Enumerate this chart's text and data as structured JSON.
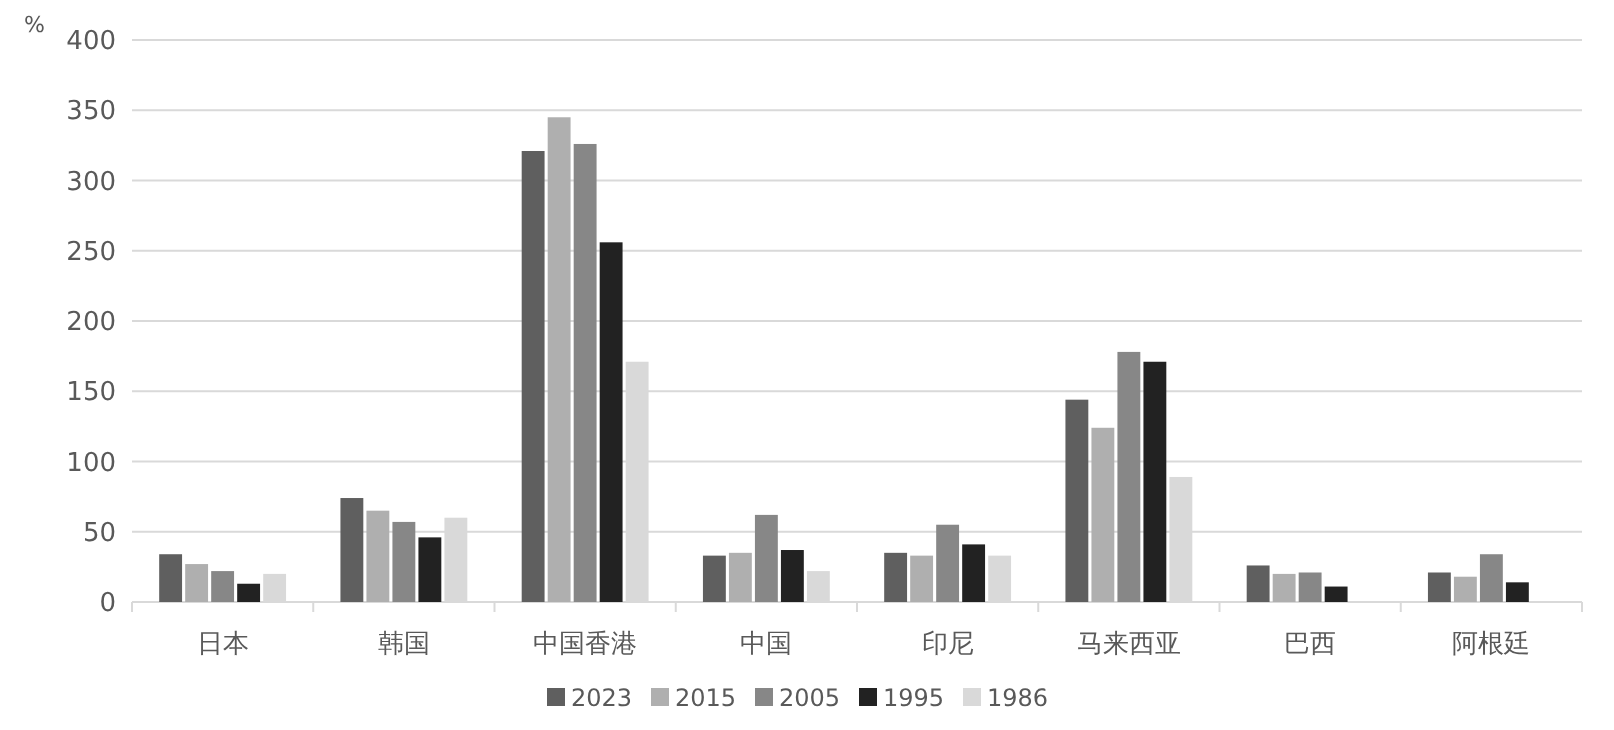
{
  "chart_data": {
    "type": "bar",
    "ylabel": "%",
    "categories": [
      "日本",
      "韩国",
      "中国香港",
      "中国",
      "印尼",
      "马来西亚",
      "巴西",
      "阿根廷"
    ],
    "series": [
      {
        "name": "2023",
        "color": "#5f5f5f",
        "values": [
          34,
          74,
          321,
          33,
          35,
          144,
          26,
          21
        ]
      },
      {
        "name": "2015",
        "color": "#afafaf",
        "values": [
          27,
          65,
          345,
          35,
          33,
          124,
          20,
          18
        ]
      },
      {
        "name": "2005",
        "color": "#878787",
        "values": [
          22,
          57,
          326,
          62,
          55,
          178,
          21,
          34
        ]
      },
      {
        "name": "1995",
        "color": "#222222",
        "values": [
          13,
          46,
          256,
          37,
          41,
          171,
          11,
          14
        ]
      },
      {
        "name": "1986",
        "color": "#d9d9d9",
        "values": [
          20,
          60,
          171,
          22,
          33,
          89,
          null,
          null
        ]
      }
    ],
    "ylim": [
      0,
      400
    ],
    "yticks": [
      0,
      50,
      100,
      150,
      200,
      250,
      300,
      350,
      400
    ],
    "grid": "y",
    "legend": "bottom"
  }
}
